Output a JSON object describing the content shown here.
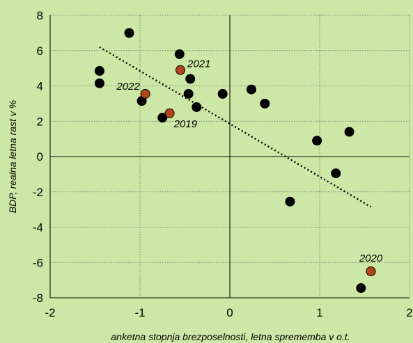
{
  "chart_data": {
    "type": "scatter",
    "xlabel": "anketna stopnja brezposelnosti, letna sprememba v o.t.",
    "ylabel": "BDP, realna letna rast v %",
    "xlim": [
      -2,
      2
    ],
    "ylim": [
      -8,
      8
    ],
    "xticks": [
      -2,
      -1,
      0,
      1,
      2
    ],
    "yticks": [
      -8,
      -6,
      -4,
      -2,
      0,
      2,
      4,
      6,
      8
    ],
    "grid": "dotted",
    "series": [
      {
        "color": "#000000",
        "points": [
          {
            "x": -1.12,
            "y": 7.0
          },
          {
            "x": -1.45,
            "y": 4.85
          },
          {
            "x": -1.45,
            "y": 4.15
          },
          {
            "x": -0.56,
            "y": 5.8
          },
          {
            "x": -0.44,
            "y": 4.4
          },
          {
            "x": -0.46,
            "y": 3.55
          },
          {
            "x": -0.98,
            "y": 3.15
          },
          {
            "x": -0.37,
            "y": 2.8
          },
          {
            "x": -0.75,
            "y": 2.2
          },
          {
            "x": -0.08,
            "y": 3.55
          },
          {
            "x": 0.24,
            "y": 3.8
          },
          {
            "x": 0.39,
            "y": 3.0
          },
          {
            "x": 0.97,
            "y": 0.9
          },
          {
            "x": 1.33,
            "y": 1.4
          },
          {
            "x": 1.18,
            "y": -0.95
          },
          {
            "x": 0.67,
            "y": -2.55
          },
          {
            "x": 1.46,
            "y": -7.45
          }
        ]
      },
      {
        "color": "#b3461a",
        "points": [
          {
            "x": -0.55,
            "y": 4.9,
            "label": "2021"
          },
          {
            "x": -0.94,
            "y": 3.55,
            "label": "2022"
          },
          {
            "x": -0.67,
            "y": 2.45,
            "label": "2019"
          },
          {
            "x": 1.57,
            "y": -6.5,
            "label": "2020"
          }
        ]
      }
    ],
    "trendline": {
      "x": [
        -1.45,
        1.57
      ],
      "y": [
        6.2,
        -2.85
      ],
      "style": "dotted"
    }
  }
}
